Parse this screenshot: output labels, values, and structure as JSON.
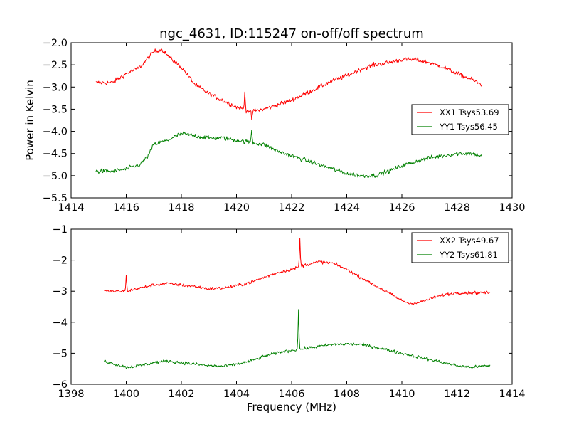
{
  "chart_data": [
    {
      "type": "line",
      "title": "ngc_4631, ID:115247 on-off/off spectrum",
      "xlabel": "",
      "ylabel": "Power in Kelvin",
      "xlim": [
        1414,
        1430
      ],
      "ylim": [
        -5.5,
        -2.0
      ],
      "xticks": [
        "1414",
        "1416",
        "1418",
        "1420",
        "1422",
        "1424",
        "1426",
        "1428",
        "1430"
      ],
      "yticks": [
        "−2.0",
        "−2.5",
        "−3.0",
        "−3.5",
        "−4.0",
        "−4.5",
        "−5.0",
        "−5.5"
      ],
      "grid": false,
      "legend_position": "right",
      "x_range": [
        1414.9,
        1428.9
      ],
      "series": [
        {
          "name": "XX1 Tsys53.69",
          "color": "#ff0000",
          "noise": 0.05,
          "points": [
            [
              1414.9,
              -2.9
            ],
            [
              1415.5,
              -2.9
            ],
            [
              1416,
              -2.7
            ],
            [
              1416.5,
              -2.55
            ],
            [
              1417,
              -2.2
            ],
            [
              1417.3,
              -2.15
            ],
            [
              1417.6,
              -2.35
            ],
            [
              1418,
              -2.55
            ],
            [
              1418.5,
              -2.95
            ],
            [
              1419,
              -3.15
            ],
            [
              1419.5,
              -3.3
            ],
            [
              1420,
              -3.45
            ],
            [
              1420.5,
              -3.55
            ],
            [
              1421,
              -3.5
            ],
            [
              1421.5,
              -3.4
            ],
            [
              1422,
              -3.3
            ],
            [
              1422.5,
              -3.15
            ],
            [
              1423,
              -3.0
            ],
            [
              1423.5,
              -2.85
            ],
            [
              1424,
              -2.75
            ],
            [
              1424.5,
              -2.6
            ],
            [
              1425,
              -2.5
            ],
            [
              1425.5,
              -2.45
            ],
            [
              1426,
              -2.38
            ],
            [
              1426.5,
              -2.38
            ],
            [
              1427,
              -2.45
            ],
            [
              1427.5,
              -2.55
            ],
            [
              1428,
              -2.7
            ],
            [
              1428.5,
              -2.82
            ],
            [
              1428.9,
              -2.95
            ]
          ],
          "spikes": [
            [
              1420.55,
              -3.75
            ],
            [
              1420.3,
              -3.1
            ]
          ]
        },
        {
          "name": "YY1 Tsys56.45",
          "color": "#008000",
          "noise": 0.05,
          "points": [
            [
              1414.9,
              -4.9
            ],
            [
              1415.5,
              -4.9
            ],
            [
              1416,
              -4.85
            ],
            [
              1416.5,
              -4.75
            ],
            [
              1416.8,
              -4.55
            ],
            [
              1417,
              -4.3
            ],
            [
              1417.5,
              -4.2
            ],
            [
              1418,
              -4.05
            ],
            [
              1418.5,
              -4.1
            ],
            [
              1419,
              -4.15
            ],
            [
              1419.5,
              -4.15
            ],
            [
              1420,
              -4.2
            ],
            [
              1420.5,
              -4.25
            ],
            [
              1421,
              -4.3
            ],
            [
              1421.5,
              -4.45
            ],
            [
              1422,
              -4.55
            ],
            [
              1422.5,
              -4.65
            ],
            [
              1423,
              -4.75
            ],
            [
              1423.5,
              -4.85
            ],
            [
              1424,
              -4.95
            ],
            [
              1424.5,
              -5.0
            ],
            [
              1425,
              -5.0
            ],
            [
              1425.5,
              -4.9
            ],
            [
              1426,
              -4.78
            ],
            [
              1426.5,
              -4.68
            ],
            [
              1427,
              -4.6
            ],
            [
              1427.5,
              -4.55
            ],
            [
              1428,
              -4.5
            ],
            [
              1428.5,
              -4.5
            ],
            [
              1428.9,
              -4.55
            ]
          ],
          "spikes": [
            [
              1420.55,
              -3.95
            ]
          ]
        }
      ]
    },
    {
      "type": "line",
      "title": "",
      "xlabel": "Frequency (MHz)",
      "ylabel": "",
      "xlim": [
        1398,
        1414
      ],
      "ylim": [
        -6,
        -1
      ],
      "xticks": [
        "1398",
        "1400",
        "1402",
        "1404",
        "1406",
        "1408",
        "1410",
        "1412",
        "1414"
      ],
      "yticks": [
        "−1",
        "−2",
        "−3",
        "−4",
        "−5",
        "−6"
      ],
      "grid": false,
      "legend_position": "top-right",
      "x_range": [
        1399.2,
        1413.2
      ],
      "series": [
        {
          "name": "XX2 Tsys49.67",
          "color": "#ff0000",
          "noise": 0.05,
          "points": [
            [
              1399.2,
              -3.0
            ],
            [
              1400,
              -3.0
            ],
            [
              1400.5,
              -2.9
            ],
            [
              1401,
              -2.8
            ],
            [
              1401.5,
              -2.75
            ],
            [
              1402,
              -2.8
            ],
            [
              1402.5,
              -2.85
            ],
            [
              1403,
              -2.92
            ],
            [
              1403.5,
              -2.9
            ],
            [
              1404,
              -2.82
            ],
            [
              1404.5,
              -2.72
            ],
            [
              1405,
              -2.55
            ],
            [
              1405.5,
              -2.4
            ],
            [
              1406,
              -2.3
            ],
            [
              1406.5,
              -2.15
            ],
            [
              1407,
              -2.05
            ],
            [
              1407.5,
              -2.1
            ],
            [
              1408,
              -2.3
            ],
            [
              1408.5,
              -2.55
            ],
            [
              1409,
              -2.8
            ],
            [
              1409.5,
              -3.05
            ],
            [
              1410,
              -3.3
            ],
            [
              1410.3,
              -3.4
            ],
            [
              1410.7,
              -3.35
            ],
            [
              1411,
              -3.25
            ],
            [
              1411.5,
              -3.12
            ],
            [
              1412,
              -3.05
            ],
            [
              1412.5,
              -3.05
            ],
            [
              1413.2,
              -3.05
            ]
          ],
          "spikes": [
            [
              1400.0,
              -2.5
            ],
            [
              1406.3,
              -1.3
            ]
          ]
        },
        {
          "name": "YY2 Tsys61.81",
          "color": "#008000",
          "noise": 0.05,
          "points": [
            [
              1399.2,
              -5.25
            ],
            [
              1400,
              -5.45
            ],
            [
              1400.5,
              -5.4
            ],
            [
              1401,
              -5.3
            ],
            [
              1401.5,
              -5.25
            ],
            [
              1402,
              -5.3
            ],
            [
              1402.5,
              -5.35
            ],
            [
              1403,
              -5.4
            ],
            [
              1403.5,
              -5.42
            ],
            [
              1404,
              -5.35
            ],
            [
              1404.5,
              -5.25
            ],
            [
              1405,
              -5.1
            ],
            [
              1405.5,
              -4.98
            ],
            [
              1406,
              -4.9
            ],
            [
              1406.5,
              -4.85
            ],
            [
              1407,
              -4.78
            ],
            [
              1407.5,
              -4.72
            ],
            [
              1408,
              -4.7
            ],
            [
              1408.5,
              -4.72
            ],
            [
              1409,
              -4.8
            ],
            [
              1409.5,
              -4.9
            ],
            [
              1410,
              -5.0
            ],
            [
              1410.5,
              -5.1
            ],
            [
              1411,
              -5.2
            ],
            [
              1411.5,
              -5.3
            ],
            [
              1412,
              -5.4
            ],
            [
              1412.5,
              -5.45
            ],
            [
              1413.2,
              -5.4
            ]
          ],
          "spikes": [
            [
              1406.25,
              -3.55
            ]
          ]
        }
      ]
    }
  ]
}
